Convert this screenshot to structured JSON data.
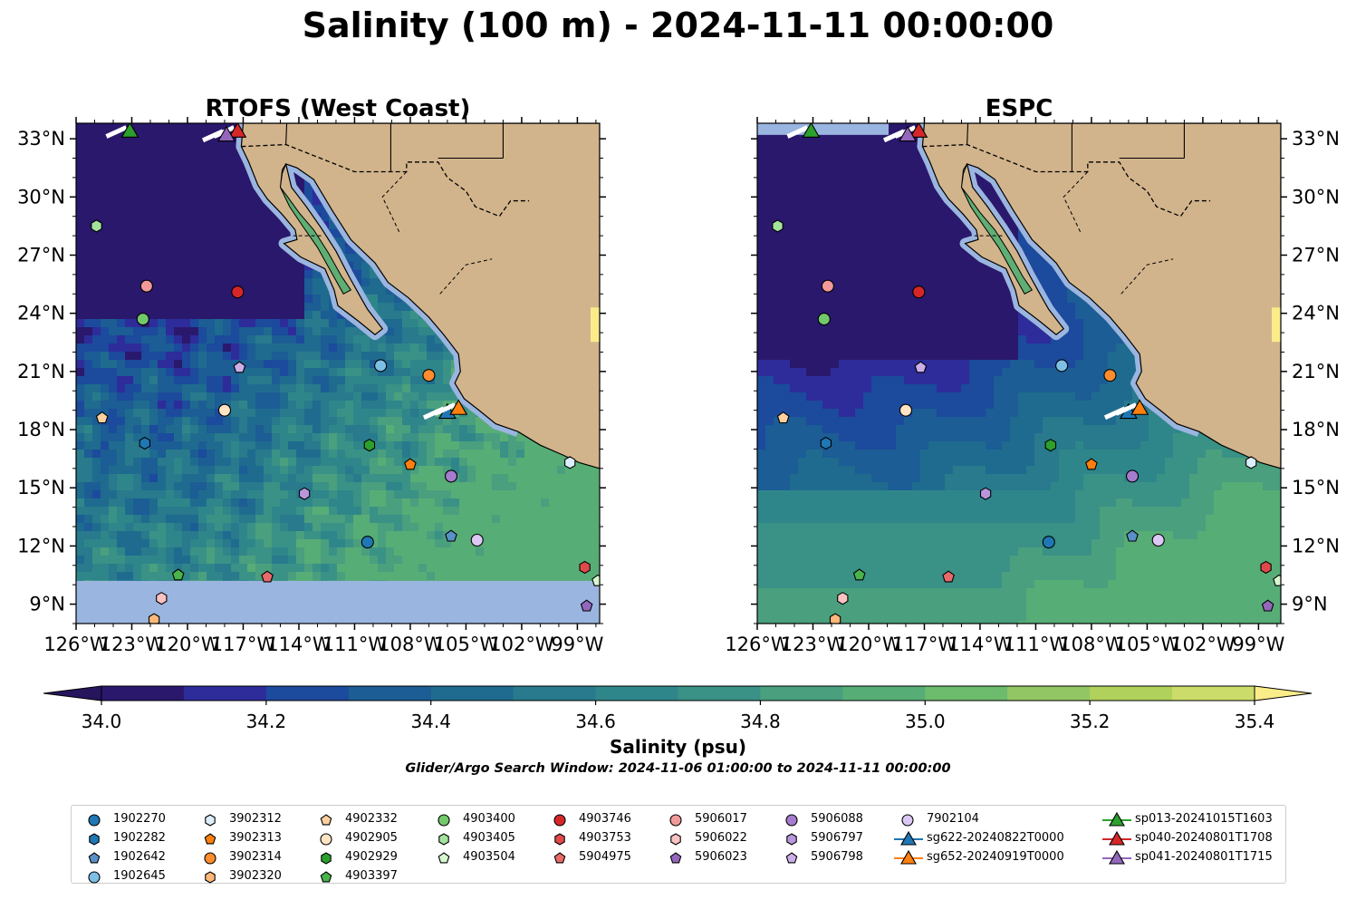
{
  "title": "Salinity (100 m) - 2024-11-11 00:00:00",
  "search_window": "Glider/Argo Search Window: 2024-11-06 01:00:00 to 2024-11-11 00:00:00",
  "colorbar": {
    "label": "Salinity (psu)",
    "min": 34.0,
    "max": 35.4,
    "step": 0.1,
    "ticks": [
      "34.0",
      "34.2",
      "34.4",
      "34.6",
      "34.8",
      "35.0",
      "35.2",
      "35.4"
    ],
    "colors": [
      "#2a186c",
      "#2d2c9a",
      "#1c4a9c",
      "#1b5d94",
      "#1f6b8f",
      "#287a8c",
      "#2f868a",
      "#3a9186",
      "#4a9f7e",
      "#57ad76",
      "#6dbb6d",
      "#92c664",
      "#b1d15d",
      "#ccdc6a"
    ],
    "under_color": "#27155e",
    "over_color": "#fbec8a"
  },
  "maps": [
    {
      "title": "RTOFS (West Coast)",
      "lon_ticks": [
        "126°W",
        "123°W",
        "120°W",
        "117°W",
        "114°W",
        "111°W",
        "108°W",
        "105°W",
        "102°W",
        "99°W"
      ],
      "lat_ticks": [
        "33°N",
        "30°N",
        "27°N",
        "24°N",
        "21°N",
        "18°N",
        "15°N",
        "12°N",
        "9°N"
      ],
      "lat_labels_side": "left",
      "domain_south_lat": 10.2
    },
    {
      "title": "ESPC",
      "lon_ticks": [
        "126°W",
        "123°W",
        "120°W",
        "117°W",
        "114°W",
        "111°W",
        "108°W",
        "105°W",
        "102°W",
        "99°W"
      ],
      "lat_ticks": [
        "33°N",
        "30°N",
        "27°N",
        "24°N",
        "21°N",
        "18°N",
        "15°N",
        "12°N",
        "9°N"
      ],
      "lat_labels_side": "right",
      "domain_south_lat": 8.0
    }
  ],
  "extent": {
    "lon_min": -126,
    "lon_max": -97.8,
    "lat_min": 8.0,
    "lat_max": 33.8
  },
  "land_color": "#d2b48c",
  "shelf_color": "#9ab5df",
  "observations": [
    {
      "id": "1902270",
      "marker": "circle",
      "color": "#1f77b4",
      "lon": -110.3,
      "lat": 12.2
    },
    {
      "id": "1902282",
      "marker": "hexagon",
      "color": "#1f77b4",
      "lon": -122.3,
      "lat": 17.3
    },
    {
      "id": "1902642",
      "marker": "pentagon",
      "color": "#5a90c8",
      "lon": -105.8,
      "lat": 12.5
    },
    {
      "id": "1902645",
      "marker": "circle",
      "color": "#7ebfe6",
      "lon": -109.6,
      "lat": 21.3
    },
    {
      "id": "3902312",
      "marker": "hexagon",
      "color": "#dbeefb",
      "lon": -99.4,
      "lat": 16.3
    },
    {
      "id": "3902313",
      "marker": "pentagon",
      "color": "#ff7f0e",
      "lon": -108.0,
      "lat": 16.2
    },
    {
      "id": "3902314",
      "marker": "circle",
      "color": "#ff8c2e",
      "lon": -107.0,
      "lat": 20.8
    },
    {
      "id": "3902320",
      "marker": "hexagon",
      "color": "#ffb878",
      "lon": -121.8,
      "lat": 8.2
    },
    {
      "id": "4902332",
      "marker": "pentagon",
      "color": "#ffcf9e",
      "lon": -124.6,
      "lat": 18.6
    },
    {
      "id": "4902905",
      "marker": "circle",
      "color": "#ffe4c4",
      "lon": -118.0,
      "lat": 19.0
    },
    {
      "id": "4902929",
      "marker": "hexagon",
      "color": "#2ca02c",
      "lon": -110.2,
      "lat": 17.2
    },
    {
      "id": "4903397",
      "marker": "pentagon",
      "color": "#4ab34a",
      "lon": -120.5,
      "lat": 10.5
    },
    {
      "id": "4903400",
      "marker": "circle",
      "color": "#72c96a",
      "lon": -122.4,
      "lat": 23.7
    },
    {
      "id": "4903405",
      "marker": "hexagon",
      "color": "#a4e39c",
      "lon": -124.9,
      "lat": 28.5
    },
    {
      "id": "4903504",
      "marker": "pentagon",
      "color": "#d8f8d0",
      "lon": -97.9,
      "lat": 10.2
    },
    {
      "id": "4903746",
      "marker": "circle",
      "color": "#d62728",
      "lon": -117.3,
      "lat": 25.1
    },
    {
      "id": "4903753",
      "marker": "hexagon",
      "color": "#e0494a",
      "lon": -98.6,
      "lat": 10.9
    },
    {
      "id": "5904975",
      "marker": "pentagon",
      "color": "#e86a6a",
      "lon": -115.7,
      "lat": 10.4
    },
    {
      "id": "5906017",
      "marker": "circle",
      "color": "#f29a9a",
      "lon": -122.2,
      "lat": 25.4
    },
    {
      "id": "5906022",
      "marker": "hexagon",
      "color": "#fbc2c2",
      "lon": -121.4,
      "lat": 9.3
    },
    {
      "id": "5906023",
      "marker": "pentagon",
      "color": "#9467bd",
      "lon": -98.5,
      "lat": 8.9
    },
    {
      "id": "5906088",
      "marker": "circle",
      "color": "#a57cce",
      "lon": -105.8,
      "lat": 15.6
    },
    {
      "id": "5906797",
      "marker": "hexagon",
      "color": "#b996dc",
      "lon": -113.7,
      "lat": 14.7
    },
    {
      "id": "5906798",
      "marker": "pentagon",
      "color": "#ccaee8",
      "lon": -117.2,
      "lat": 21.2
    },
    {
      "id": "7902104",
      "marker": "circle",
      "color": "#dcc8f4",
      "lon": -104.4,
      "lat": 12.3
    }
  ],
  "gliders": [
    {
      "id": "sg622-20240822T0000",
      "color": "#1f77b4",
      "lon": -106.0,
      "lat": 18.9
    },
    {
      "id": "sg652-20240919T0000",
      "color": "#ff7f0e",
      "lon": -105.4,
      "lat": 19.1
    },
    {
      "id": "sp013-20241015T1603",
      "color": "#2ca02c",
      "lon": -123.1,
      "lat": 33.4
    },
    {
      "id": "sp040-20240801T1708",
      "color": "#d62728",
      "lon": -117.3,
      "lat": 33.4
    },
    {
      "id": "sp041-20240801T1715",
      "color": "#9467bd",
      "lon": -117.9,
      "lat": 33.2
    }
  ]
}
